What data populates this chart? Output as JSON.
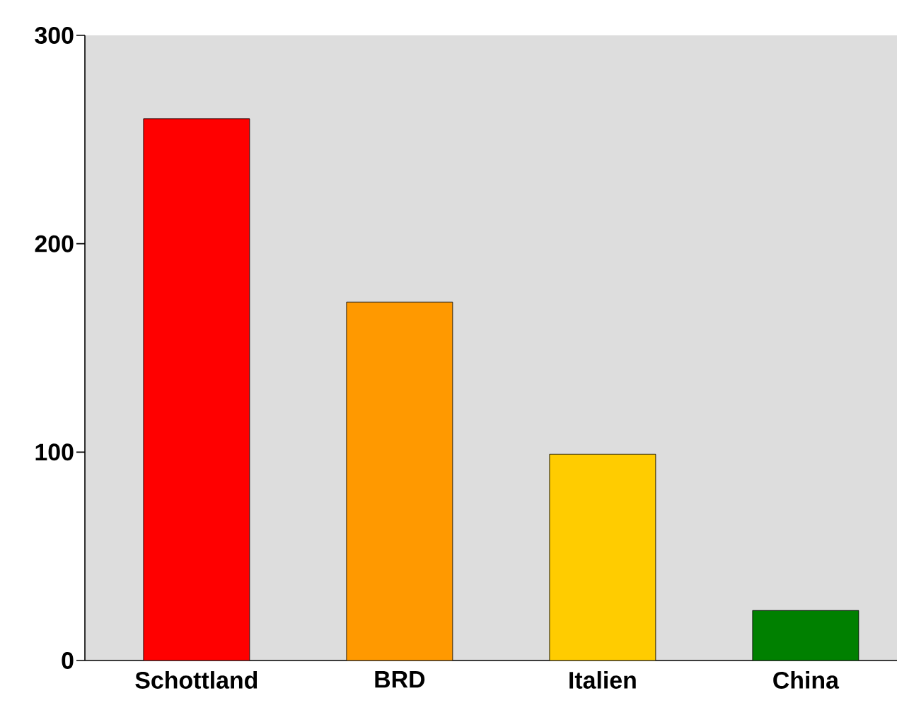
{
  "chart_data": {
    "type": "bar",
    "categories": [
      "Schottland",
      "BRD",
      "Italien",
      "China"
    ],
    "values": [
      260,
      172,
      99,
      24
    ],
    "colors": [
      "#ff0000",
      "#ff9900",
      "#ffcc00",
      "#008000"
    ],
    "ylim": [
      0,
      300
    ],
    "yticks": [
      0,
      100,
      200,
      300
    ],
    "grid": false
  }
}
